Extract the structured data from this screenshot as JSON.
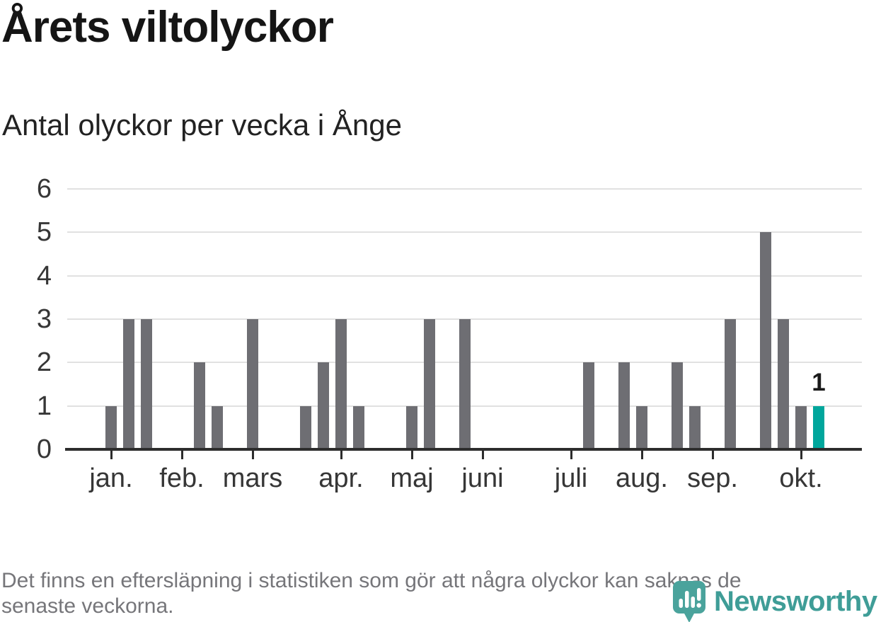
{
  "chart_data": {
    "type": "bar",
    "title": "Årets viltolyckor",
    "subtitle": "Antal olyckor per vecka i Ånge",
    "x_unit": "week",
    "weeks_shown": 41,
    "values": [
      1,
      3,
      3,
      0,
      0,
      2,
      1,
      0,
      3,
      0,
      0,
      1,
      2,
      3,
      1,
      0,
      0,
      1,
      3,
      0,
      3,
      0,
      0,
      0,
      0,
      0,
      0,
      2,
      0,
      2,
      1,
      0,
      2,
      1,
      0,
      3,
      0,
      5,
      3,
      1,
      1
    ],
    "month_ticks": [
      {
        "label": "jan.",
        "week": 1
      },
      {
        "label": "feb.",
        "week": 5
      },
      {
        "label": "mars",
        "week": 9
      },
      {
        "label": "apr.",
        "week": 14
      },
      {
        "label": "maj",
        "week": 18
      },
      {
        "label": "juni",
        "week": 22
      },
      {
        "label": "juli",
        "week": 27
      },
      {
        "label": "aug.",
        "week": 31
      },
      {
        "label": "sep.",
        "week": 35
      },
      {
        "label": "okt.",
        "week": 40
      }
    ],
    "ylim": [
      0,
      6
    ],
    "yticks": [
      0,
      1,
      2,
      3,
      4,
      5,
      6
    ],
    "grid": "horizontal",
    "legend": "none",
    "bar_color": "#6e6e73",
    "highlight": {
      "week": 41,
      "value": 1,
      "label": "1",
      "color": "#00a69c"
    },
    "axis_color": "#2d2d2d",
    "gridline_color": "#e1e1e1"
  },
  "footnote": {
    "lines": [
      "Det finns en eftersläpning i statistiken som gör att några olyckor kan saknas de",
      "senaste veckorna."
    ]
  },
  "logo": {
    "wordmark": "Newsworthy",
    "color": "#3f9d97",
    "icon_color": "#4aa39c",
    "icon": "newsworthy-pin-bar-chart-icon"
  }
}
